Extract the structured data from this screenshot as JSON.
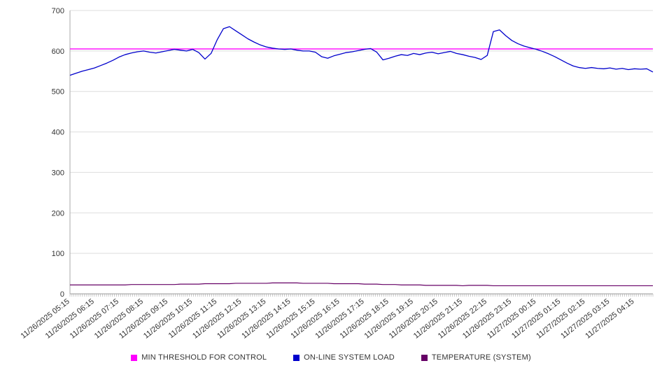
{
  "chart_data": {
    "type": "line",
    "title": "",
    "xlabel": "",
    "ylabel": "",
    "ylim": [
      0,
      700
    ],
    "y_ticks": [
      0,
      100,
      200,
      300,
      400,
      500,
      600,
      700
    ],
    "grid": "horizontal",
    "legend_position": "bottom",
    "points_per_label": 4,
    "x_labels": [
      "11/26/2025 05:15",
      "11/26/2025 06:15",
      "11/26/2025 07:15",
      "11/26/2025 08:15",
      "11/26/2025 09:15",
      "11/26/2025 10:15",
      "11/26/2025 11:15",
      "11/26/2025 12:15",
      "11/26/2025 13:15",
      "11/26/2025 14:15",
      "11/26/2025 15:15",
      "11/26/2025 16:15",
      "11/26/2025 17:15",
      "11/26/2025 18:15",
      "11/26/2025 19:15",
      "11/26/2025 20:15",
      "11/26/2025 21:15",
      "11/26/2025 22:15",
      "11/26/2025 23:15",
      "11/27/2025 00:15",
      "11/27/2025 01:15",
      "11/27/2025 02:15",
      "11/27/2025 03:15",
      "11/27/2025 04:15"
    ],
    "series": [
      {
        "name": "MIN THRESHOLD FOR CONTROL",
        "color": "#FF00FF",
        "width": 1.4,
        "constant": 605
      },
      {
        "name": "ON-LINE SYSTEM LOAD",
        "color": "#0000CC",
        "width": 1.3,
        "values": [
          540,
          545,
          550,
          554,
          558,
          564,
          570,
          577,
          585,
          591,
          595,
          598,
          600,
          597,
          595,
          598,
          601,
          604,
          602,
          600,
          604,
          596,
          580,
          594,
          628,
          655,
          660,
          650,
          640,
          630,
          622,
          615,
          610,
          607,
          605,
          604,
          605,
          602,
          600,
          600,
          597,
          586,
          582,
          588,
          592,
          596,
          598,
          601,
          604,
          606,
          597,
          578,
          582,
          587,
          591,
          589,
          594,
          591,
          595,
          597,
          593,
          596,
          599,
          594,
          591,
          587,
          584,
          579,
          589,
          648,
          652,
          638,
          626,
          618,
          612,
          608,
          604,
          599,
          593,
          586,
          578,
          570,
          563,
          559,
          557,
          559,
          557,
          556,
          558,
          555,
          557,
          554,
          556,
          555,
          556,
          548
        ]
      },
      {
        "name": "TEMPERATURE (SYSTEM)",
        "color": "#660066",
        "width": 1.2,
        "values": [
          22,
          22,
          22,
          22,
          22,
          22,
          22,
          22,
          22,
          22,
          23,
          23,
          23,
          23,
          23,
          23,
          23,
          23,
          24,
          24,
          24,
          24,
          25,
          25,
          25,
          25,
          25,
          26,
          26,
          26,
          26,
          26,
          26,
          27,
          27,
          27,
          27,
          27,
          26,
          26,
          26,
          26,
          26,
          25,
          25,
          25,
          25,
          25,
          24,
          24,
          24,
          23,
          23,
          23,
          22,
          22,
          22,
          22,
          21,
          21,
          21,
          21,
          21,
          21,
          20,
          21,
          21,
          21,
          21,
          20,
          20,
          20,
          20,
          20,
          20,
          20,
          20,
          20,
          20,
          20,
          20,
          20,
          20,
          20,
          20,
          20,
          20,
          20,
          20,
          20,
          20,
          20,
          20,
          20,
          20,
          20
        ]
      }
    ]
  }
}
